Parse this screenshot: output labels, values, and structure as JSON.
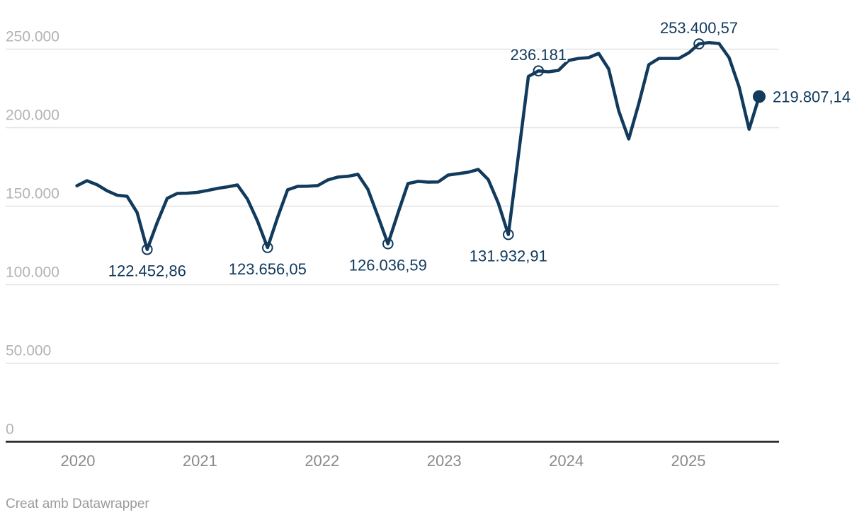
{
  "chart_data": {
    "type": "line",
    "x_tick_labels": [
      "2020",
      "2021",
      "2022",
      "2023",
      "2024",
      "2025"
    ],
    "y_tick_labels": [
      "0",
      "50.000",
      "100.000",
      "150.000",
      "200.000",
      "250.000"
    ],
    "y_ticks": [
      0,
      50000,
      100000,
      150000,
      200000,
      250000
    ],
    "ylim": [
      0,
      277000
    ],
    "grid": true,
    "legend": false,
    "series": [
      {
        "name": "",
        "values": [
          163000,
          166200,
          163700,
          159800,
          157000,
          156300,
          146000,
          122452.86,
          139500,
          155000,
          158100,
          158300,
          158800,
          160000,
          161300,
          162300,
          163500,
          154500,
          140500,
          123656.05,
          142800,
          160400,
          162600,
          162700,
          163100,
          166700,
          168500,
          169000,
          170300,
          160800,
          143700,
          126036.59,
          145500,
          164400,
          165800,
          165300,
          165400,
          169800,
          170700,
          171600,
          173400,
          167000,
          152000,
          131932.91,
          182000,
          232600,
          236181,
          235600,
          236500,
          242800,
          244100,
          244600,
          247300,
          237400,
          210800,
          192800,
          215300,
          240100,
          244100,
          244100,
          244100,
          247700,
          253400.57,
          254200,
          253600,
          244600,
          226000,
          199000,
          219807.14
        ]
      }
    ],
    "annotations": [
      {
        "index": 7,
        "label": "122.452,86",
        "value": 122452.86,
        "marker": "open",
        "placement": "below"
      },
      {
        "index": 19,
        "label": "123.656,05",
        "value": 123656.05,
        "marker": "open",
        "placement": "below"
      },
      {
        "index": 31,
        "label": "126.036,59",
        "value": 126036.59,
        "marker": "open",
        "placement": "below"
      },
      {
        "index": 43,
        "label": "131.932,91",
        "value": 131932.91,
        "marker": "open",
        "placement": "below"
      },
      {
        "index": 46,
        "label": "236.181",
        "value": 236181,
        "marker": "open",
        "placement": "above"
      },
      {
        "index": 62,
        "label": "253.400,57",
        "value": 253400.57,
        "marker": "open",
        "placement": "above"
      },
      {
        "index": 68,
        "label": "219.807,14",
        "value": 219807.14,
        "marker": "filled",
        "placement": "right"
      }
    ],
    "colors": {
      "line": "#113a5c",
      "label": "#113a5c",
      "axis": "#1a1a1a",
      "grid": "#e3e3e3",
      "y_tick_text": "#b3b3b3",
      "x_tick_text": "#8a8a8a",
      "footer_text": "#9b9b9b"
    },
    "footer": "Creat amb Datawrapper"
  }
}
